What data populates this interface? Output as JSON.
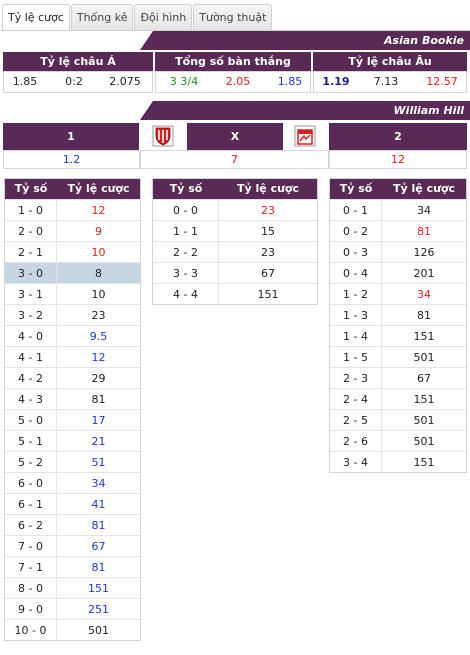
{
  "tabs": [
    {
      "label": "Tỷ lệ cược",
      "active": true
    },
    {
      "label": "Thống kê",
      "active": false
    },
    {
      "label": "Đội hình",
      "active": false
    },
    {
      "label": "Tường thuật",
      "active": false
    }
  ],
  "asian": {
    "bookie": "Asian Bookie",
    "headers": [
      "Tỷ lệ châu Á",
      "Tổng số bàn thắng",
      "Tỷ lệ châu Âu"
    ],
    "asian_odds": [
      "1.85",
      "0:2",
      "2.075"
    ],
    "total_goals": [
      "3 3/4",
      "2.05",
      "1.85"
    ],
    "euro_odds": [
      "1.19",
      "7.13",
      "12.57"
    ]
  },
  "william": {
    "bookie": "William Hill",
    "labels": [
      "1",
      "X",
      "2"
    ],
    "values": [
      "1.2",
      "7",
      "12"
    ]
  },
  "score_header": {
    "score": "Tỷ số",
    "odds": "Tỷ lệ cược"
  },
  "home_scores": [
    {
      "s": "1 - 0",
      "o": "12",
      "c": "red"
    },
    {
      "s": "2 - 0",
      "o": "9",
      "c": "red"
    },
    {
      "s": "2 - 1",
      "o": "10",
      "c": "red"
    },
    {
      "s": "3 - 0",
      "o": "8",
      "c": "black",
      "hl": true
    },
    {
      "s": "3 - 1",
      "o": "10",
      "c": "black"
    },
    {
      "s": "3 - 2",
      "o": "23",
      "c": "black"
    },
    {
      "s": "4 - 0",
      "o": "9.5",
      "c": "blue"
    },
    {
      "s": "4 - 1",
      "o": "12",
      "c": "blue"
    },
    {
      "s": "4 - 2",
      "o": "29",
      "c": "black"
    },
    {
      "s": "4 - 3",
      "o": "81",
      "c": "black"
    },
    {
      "s": "5 - 0",
      "o": "17",
      "c": "blue"
    },
    {
      "s": "5 - 1",
      "o": "21",
      "c": "blue"
    },
    {
      "s": "5 - 2",
      "o": "51",
      "c": "blue"
    },
    {
      "s": "6 - 0",
      "o": "34",
      "c": "blue"
    },
    {
      "s": "6 - 1",
      "o": "41",
      "c": "blue"
    },
    {
      "s": "6 - 2",
      "o": "81",
      "c": "blue"
    },
    {
      "s": "7 - 0",
      "o": "67",
      "c": "blue"
    },
    {
      "s": "7 - 1",
      "o": "81",
      "c": "blue"
    },
    {
      "s": "8 - 0",
      "o": "151",
      "c": "blue"
    },
    {
      "s": "9 - 0",
      "o": "251",
      "c": "blue"
    },
    {
      "s": "10 - 0",
      "o": "501",
      "c": "black"
    }
  ],
  "draw_scores": [
    {
      "s": "0 - 0",
      "o": "23",
      "c": "red"
    },
    {
      "s": "1 - 1",
      "o": "15",
      "c": "black"
    },
    {
      "s": "2 - 2",
      "o": "23",
      "c": "black"
    },
    {
      "s": "3 - 3",
      "o": "67",
      "c": "black"
    },
    {
      "s": "4 - 4",
      "o": "151",
      "c": "black"
    }
  ],
  "away_scores": [
    {
      "s": "0 - 1",
      "o": "34",
      "c": "black"
    },
    {
      "s": "0 - 2",
      "o": "81",
      "c": "red"
    },
    {
      "s": "0 - 3",
      "o": "126",
      "c": "black"
    },
    {
      "s": "0 - 4",
      "o": "201",
      "c": "black"
    },
    {
      "s": "1 - 2",
      "o": "34",
      "c": "red"
    },
    {
      "s": "1 - 3",
      "o": "81",
      "c": "black"
    },
    {
      "s": "1 - 4",
      "o": "151",
      "c": "black"
    },
    {
      "s": "1 - 5",
      "o": "501",
      "c": "black"
    },
    {
      "s": "2 - 3",
      "o": "67",
      "c": "black"
    },
    {
      "s": "2 - 4",
      "o": "151",
      "c": "black"
    },
    {
      "s": "2 - 5",
      "o": "501",
      "c": "black"
    },
    {
      "s": "2 - 6",
      "o": "501",
      "c": "black"
    },
    {
      "s": "3 - 4",
      "o": "151",
      "c": "black"
    }
  ],
  "colors": {
    "header": "#5a2a56",
    "highlight": "#c7d6e2",
    "red": "#e02020",
    "blue": "#2237c8"
  },
  "icons": {
    "home": "home-team-logo",
    "away": "away-team-logo"
  }
}
